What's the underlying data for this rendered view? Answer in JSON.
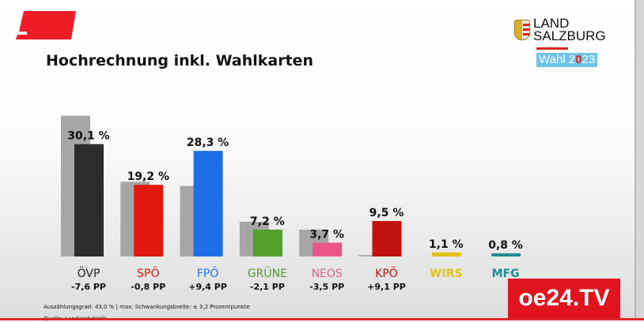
{
  "title": "Hochrechnung inkl. Wahlkarten",
  "logo": {
    "line1": "LAND",
    "line2": "SALZBURG",
    "wahl_prefix": "Wahl 2",
    "wahl_x": "0",
    "wahl_suffix": "23"
  },
  "footer": {
    "note": "Auszählungsgrad: 43,0 % | max. Schwankungsbreite: ± 3,2 Prozentpunkte",
    "source": "Quelle: Landesstatistik"
  },
  "channel": "oe24.TV",
  "chart_data": {
    "type": "bar",
    "title": "Hochrechnung inkl. Wahlkarten",
    "categories": [
      "ÖVP",
      "SPÖ",
      "FPÖ",
      "GRÜNE",
      "NEOS",
      "KPÖ",
      "WIRS",
      "MFG"
    ],
    "series": [
      {
        "values": [
          37.7,
          20.0,
          18.9,
          9.3,
          7.2,
          0.4,
          null,
          null
        ],
        "color": "#a5a6a5"
      },
      {
        "values": [
          30.1,
          19.2,
          28.3,
          7.2,
          3.7,
          9.5,
          1.1,
          0.8
        ]
      }
    ],
    "value_labels": [
      "30,1 %",
      "19,2 %",
      "28,3 %",
      "7,2 %",
      "3,7 %",
      "9,5 %",
      "1,1 %",
      "0,8 %"
    ],
    "change_labels": [
      "-7,6 PP",
      "-0,8 PP",
      "+9,4 PP",
      "-2,1 PP",
      "-3,5 PP",
      "+9,1 PP",
      "",
      ""
    ],
    "colors": [
      "#2b2c2b",
      "#e3180d",
      "#1e6fe6",
      "#52a02a",
      "#e8568a",
      "#c0120f",
      "#e6c31a",
      "#1f8a8e"
    ],
    "label_colors": [
      "#222222",
      "#d1170e",
      "#1e6fe6",
      "#4f9a2a",
      "#d8628c",
      "#b0130f",
      "#e2c21e",
      "#1f8a8e"
    ],
    "ylim": [
      0,
      40
    ],
    "grid": false
  }
}
